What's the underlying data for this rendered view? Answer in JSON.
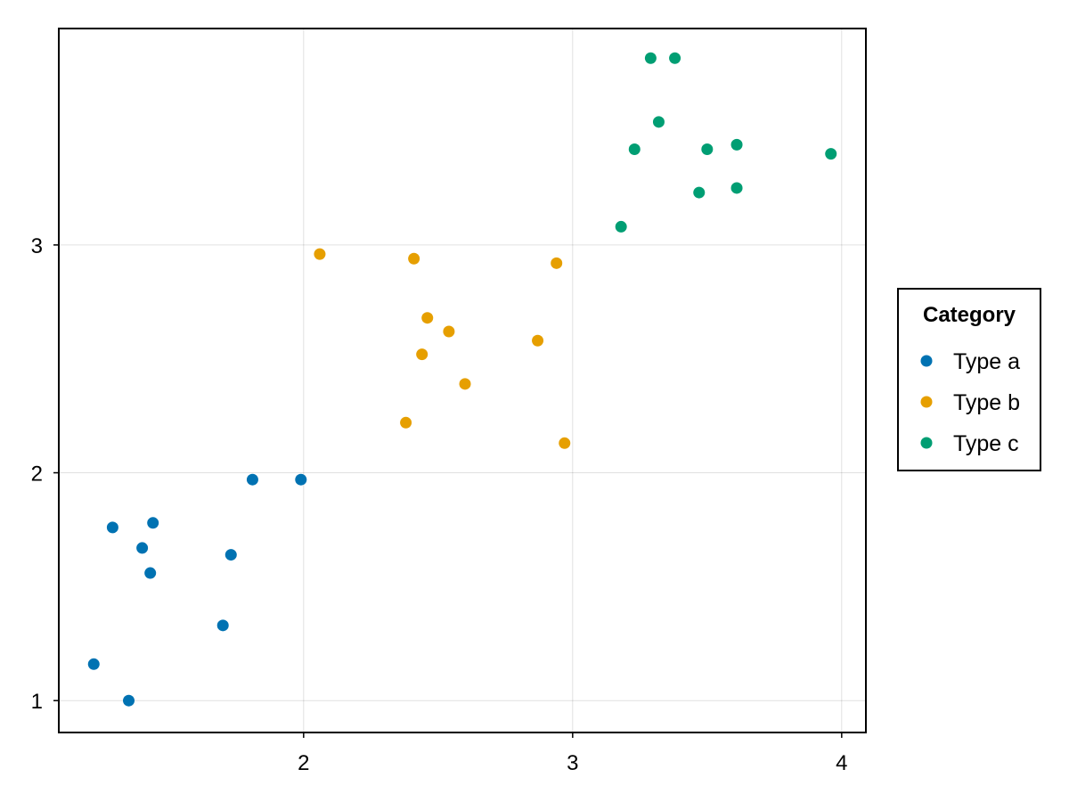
{
  "chart_data": {
    "type": "scatter",
    "title": "",
    "xlabel": "",
    "ylabel": "",
    "xlim": [
      1.09,
      4.09
    ],
    "ylim": [
      0.86,
      3.95
    ],
    "x_ticks": [
      2,
      3,
      4
    ],
    "y_ticks": [
      1,
      2,
      3
    ],
    "x_tick_labels": [
      "2",
      "3",
      "4"
    ],
    "y_tick_labels": [
      "1",
      "2",
      "3"
    ],
    "grid": true,
    "legend": {
      "title": "Category",
      "placement": "right"
    },
    "series": [
      {
        "name": "Type a",
        "color": "#0072b2",
        "points": [
          {
            "x": 1.22,
            "y": 1.16
          },
          {
            "x": 1.35,
            "y": 1.0
          },
          {
            "x": 1.29,
            "y": 1.76
          },
          {
            "x": 1.4,
            "y": 1.67
          },
          {
            "x": 1.43,
            "y": 1.56
          },
          {
            "x": 1.44,
            "y": 1.78
          },
          {
            "x": 1.7,
            "y": 1.33
          },
          {
            "x": 1.73,
            "y": 1.64
          },
          {
            "x": 1.81,
            "y": 1.97
          },
          {
            "x": 1.99,
            "y": 1.97
          }
        ]
      },
      {
        "name": "Type b",
        "color": "#e69f00",
        "points": [
          {
            "x": 2.06,
            "y": 2.96
          },
          {
            "x": 2.38,
            "y": 2.22
          },
          {
            "x": 2.41,
            "y": 2.94
          },
          {
            "x": 2.44,
            "y": 2.52
          },
          {
            "x": 2.46,
            "y": 2.68
          },
          {
            "x": 2.54,
            "y": 2.62
          },
          {
            "x": 2.6,
            "y": 2.39
          },
          {
            "x": 2.87,
            "y": 2.58
          },
          {
            "x": 2.94,
            "y": 2.92
          },
          {
            "x": 2.97,
            "y": 2.13
          }
        ]
      },
      {
        "name": "Type c",
        "color": "#009e73",
        "points": [
          {
            "x": 3.18,
            "y": 3.08
          },
          {
            "x": 3.23,
            "y": 3.42
          },
          {
            "x": 3.29,
            "y": 3.82
          },
          {
            "x": 3.32,
            "y": 3.54
          },
          {
            "x": 3.38,
            "y": 3.82
          },
          {
            "x": 3.47,
            "y": 3.23
          },
          {
            "x": 3.5,
            "y": 3.42
          },
          {
            "x": 3.61,
            "y": 3.44
          },
          {
            "x": 3.61,
            "y": 3.25
          },
          {
            "x": 3.96,
            "y": 3.4
          }
        ]
      }
    ]
  }
}
